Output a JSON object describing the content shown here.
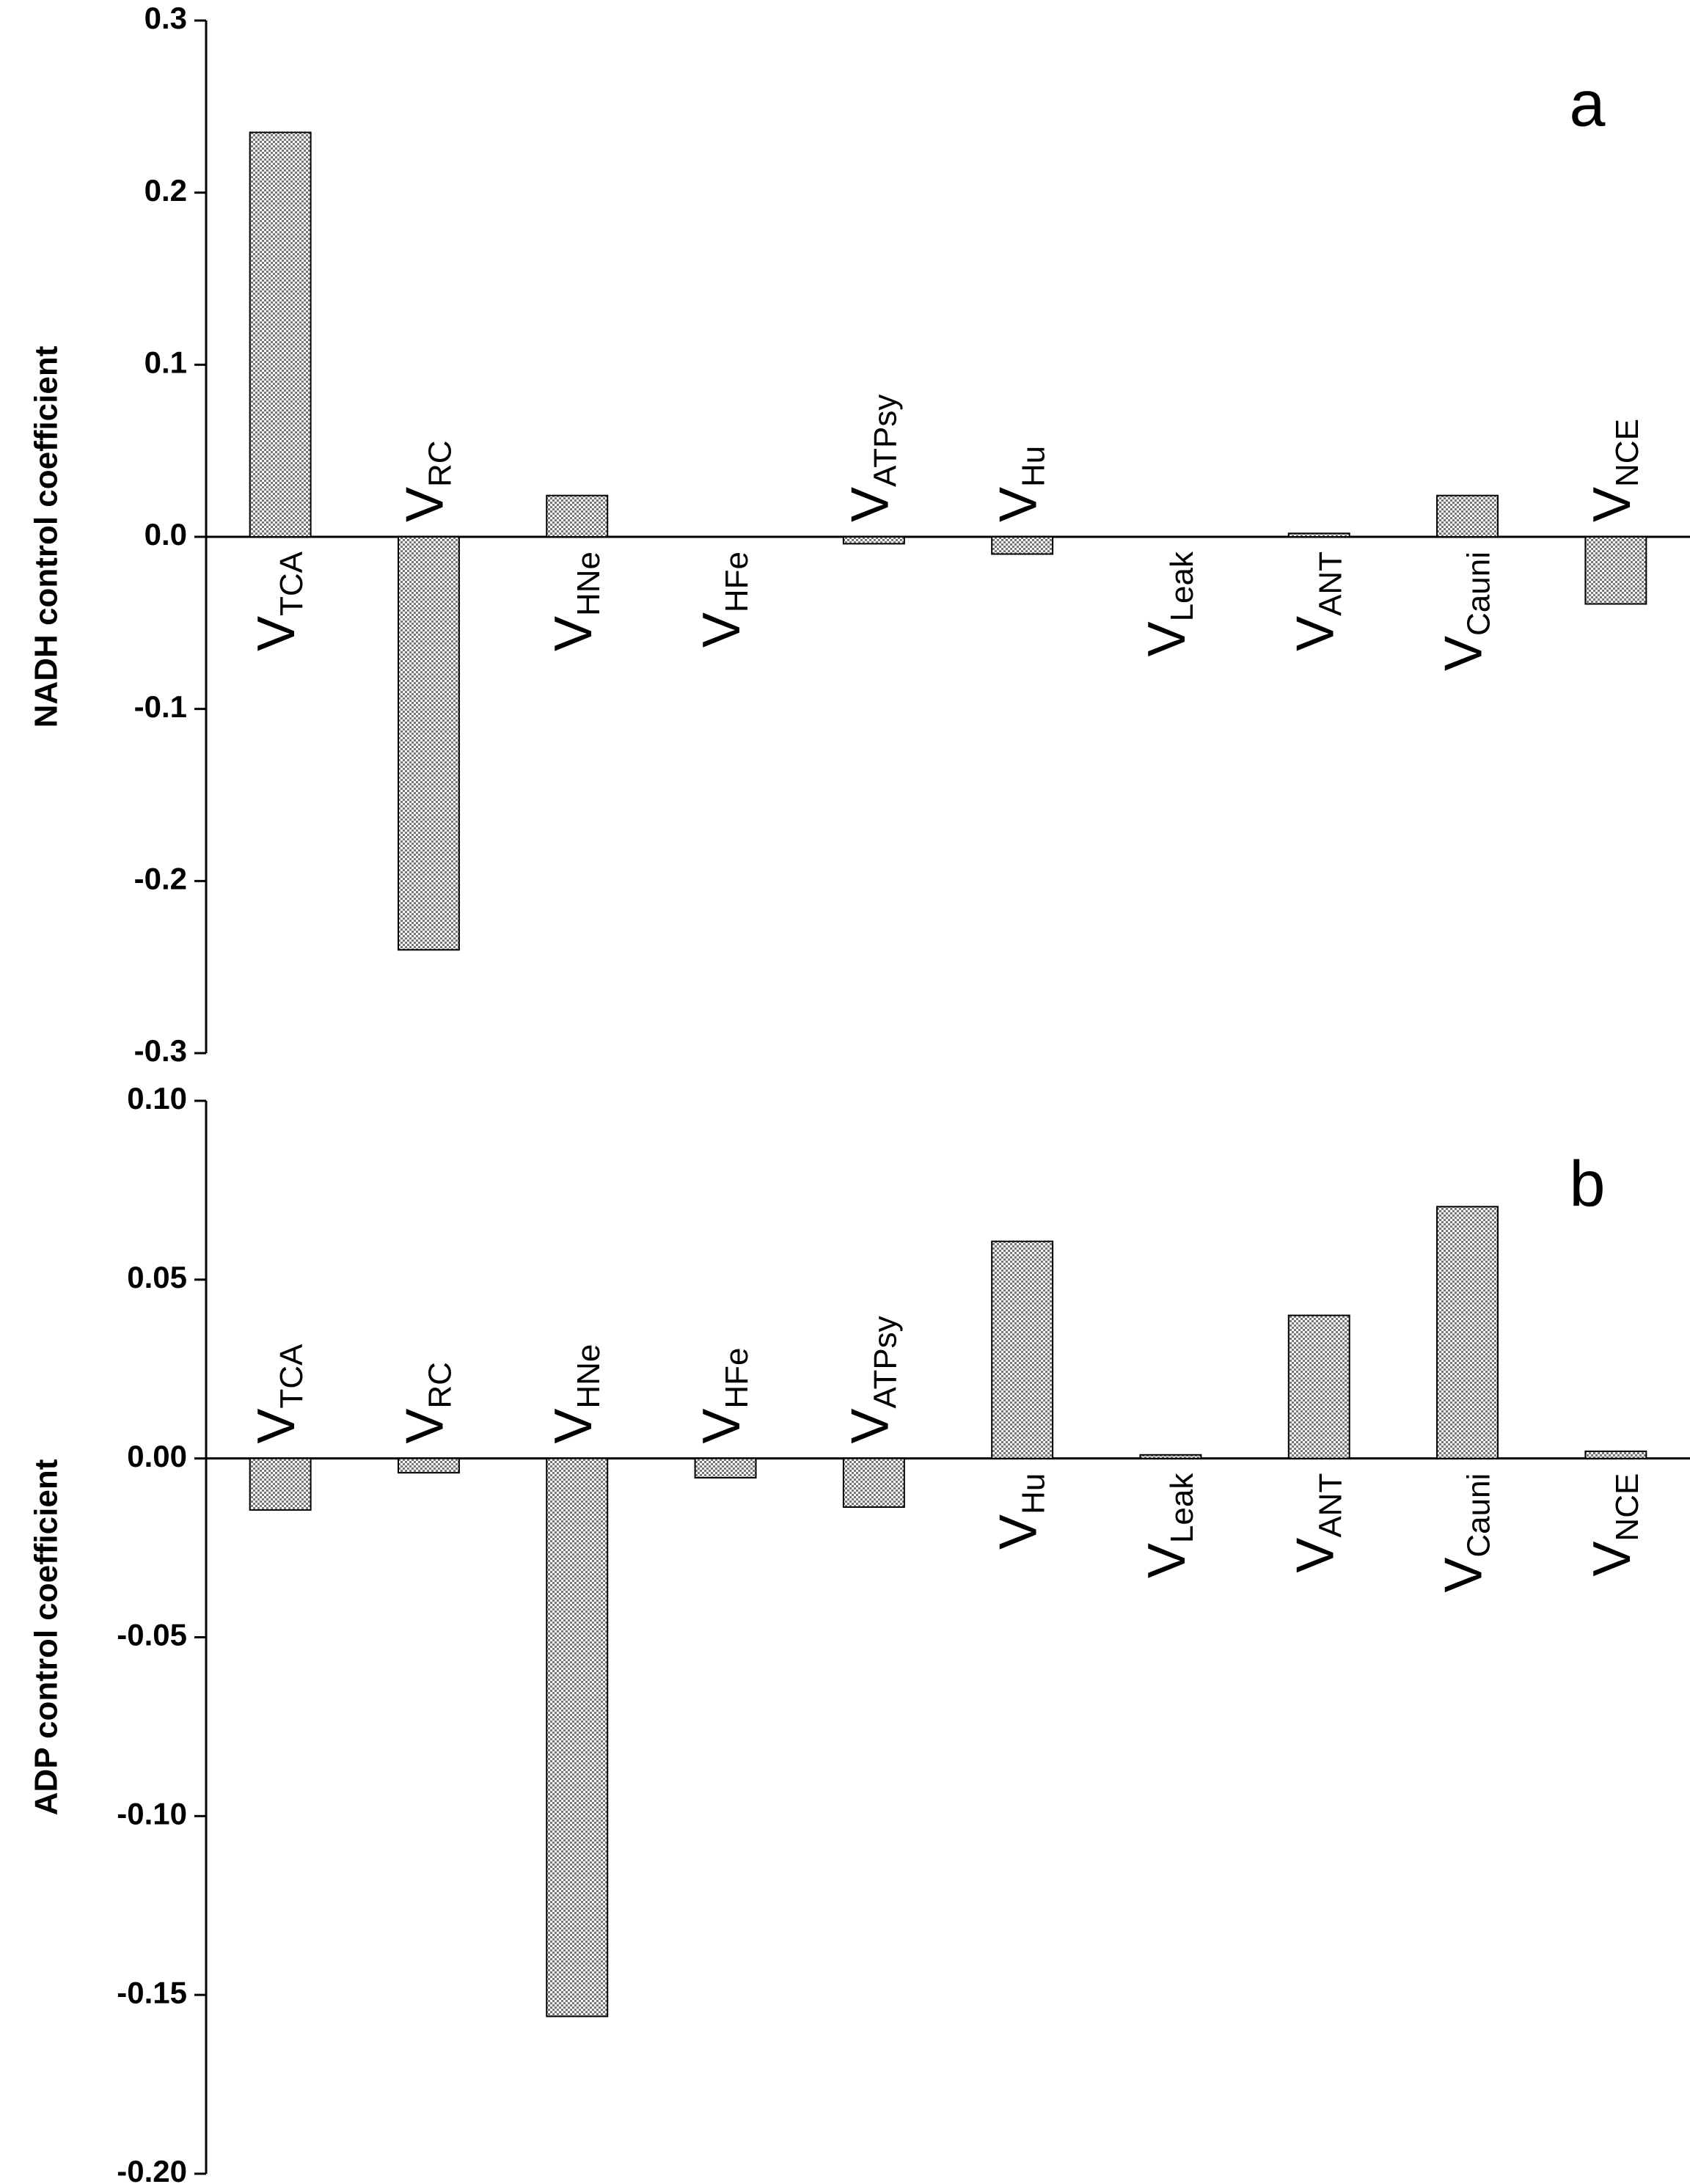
{
  "chart_data": [
    {
      "type": "bar",
      "annotation": "a",
      "y_label": "NADH control coefficient",
      "categories": [
        {
          "symbol": "V",
          "subscript": "TCA"
        },
        {
          "symbol": "V",
          "subscript": "RC"
        },
        {
          "symbol": "V",
          "subscript": "HNe"
        },
        {
          "symbol": "V",
          "subscript": "HFe"
        },
        {
          "symbol": "V",
          "subscript": "ATPsy"
        },
        {
          "symbol": "V",
          "subscript": "Hu"
        },
        {
          "symbol": "V",
          "subscript": "Leak"
        },
        {
          "symbol": "V",
          "subscript": "ANT"
        },
        {
          "symbol": "V",
          "subscript": "Cauni"
        },
        {
          "symbol": "V",
          "subscript": "NCE"
        }
      ],
      "values": [
        0.235,
        -0.24,
        0.024,
        0,
        -0.004,
        -0.01,
        0,
        0.002,
        0.024,
        -0.039
      ],
      "color": "#888888",
      "ylim": [
        -0.3,
        0.3
      ],
      "yticks": [
        0.3,
        0.2,
        0.1,
        {
          "value": 0,
          "label": "0.0"
        },
        -0.1,
        -0.2,
        -0.3
      ]
    },
    {
      "type": "bar",
      "annotation": "b",
      "y_label": "ADP control coefficient",
      "categories": [
        {
          "symbol": "V",
          "subscript": "TCA"
        },
        {
          "symbol": "V",
          "subscript": "RC"
        },
        {
          "symbol": "V",
          "subscript": "HNe"
        },
        {
          "symbol": "V",
          "subscript": "HFe"
        },
        {
          "symbol": "V",
          "subscript": "ATPsy"
        },
        {
          "symbol": "V",
          "subscript": "Hu"
        },
        {
          "symbol": "V",
          "subscript": "Leak"
        },
        {
          "symbol": "V",
          "subscript": "ANT"
        },
        {
          "symbol": "V",
          "subscript": "Cauni"
        },
        {
          "symbol": "V",
          "subscript": "NCE"
        }
      ],
      "values": [
        -0.0144,
        -0.004,
        -0.156,
        -0.0054,
        -0.0136,
        0.0607,
        0.001,
        0.04,
        0.0704,
        0.002
      ],
      "color": "#888888",
      "ylim": [
        -0.2,
        0.1
      ],
      "yticks": [
        {
          "value": 0.1,
          "label": "0.10"
        },
        0.05,
        {
          "value": 0,
          "label": "0.00"
        },
        -0.05,
        {
          "value": -0.1,
          "label": "-0.10"
        },
        -0.15,
        {
          "value": -0.2,
          "label": "-0.20"
        }
      ]
    }
  ]
}
